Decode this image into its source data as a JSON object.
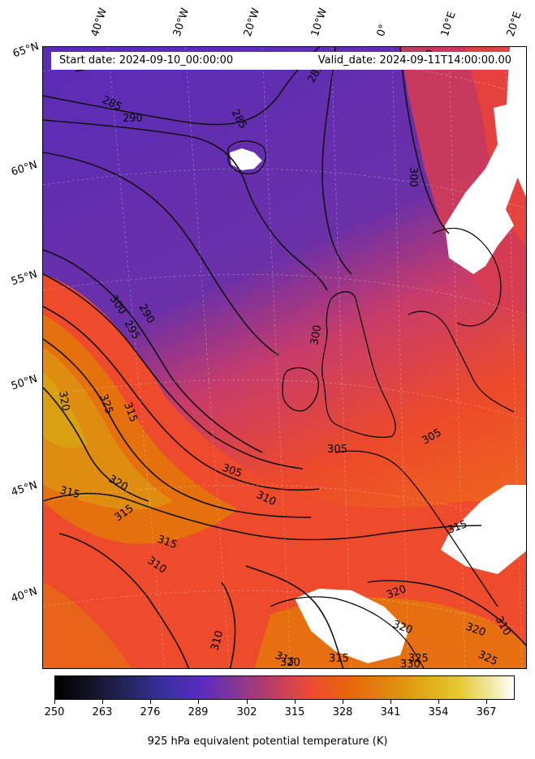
{
  "header": {
    "start_date": "Start date: 2024-09-10_00:00:00",
    "valid_date": "Valid_date: 2024-09-11T14:00:00.00"
  },
  "longitude_labels": [
    "40°W",
    "30°W",
    "20°W",
    "10°W",
    "0°",
    "10°E",
    "20°E"
  ],
  "latitude_labels": [
    "65°N",
    "60°N",
    "55°N",
    "50°N",
    "45°N",
    "40°N"
  ],
  "contour_labels": [
    "285",
    "285",
    "285",
    "290",
    "290",
    "295",
    "300",
    "300",
    "305",
    "305",
    "310",
    "310",
    "310",
    "310",
    "315",
    "315",
    "315",
    "315",
    "315",
    "315",
    "315",
    "320",
    "320",
    "320",
    "320",
    "320",
    "320",
    "325",
    "325",
    "325",
    "330",
    "300",
    "300",
    "305"
  ],
  "colorbar": {
    "title": "925 hPa equivalent potential temperature (K)",
    "colormap": "CMRmap",
    "range": [
      250,
      375
    ],
    "tick_labels": [
      "250",
      "263",
      "276",
      "289",
      "302",
      "315",
      "328",
      "341",
      "354",
      "367"
    ]
  },
  "colors": {
    "cold": "#5128b8",
    "mid": "#e8423c",
    "warm": "#e07a10",
    "hot": "#e0a010"
  }
}
